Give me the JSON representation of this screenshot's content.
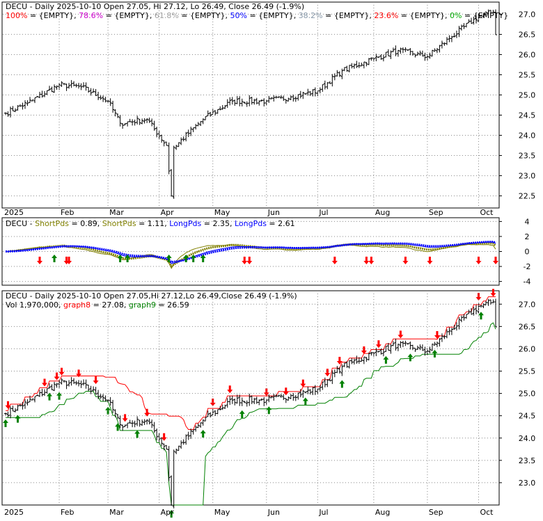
{
  "colors": {
    "background": "#ffffff",
    "panel_border": "#000000",
    "grid": "#888888",
    "price_bar": "#000000",
    "fib_100": "#ff0000",
    "fib_786": "#cc00cc",
    "fib_618": "#a0a0a0",
    "fib_50": "#0000ff",
    "fib_382": "#8899aa",
    "fib_236": "#ff0000",
    "fib_0": "#00aa00",
    "short_pds": "#808000",
    "long_pds": "#0000ff",
    "graph8": "#ff0000",
    "graph9": "#008000",
    "buy_arrow": "#008000",
    "sell_arrow": "#ff0000"
  },
  "chart_data": [
    {
      "type": "candlestick",
      "panel": "price",
      "title": "DECU - Daily 2025-10-10 Open 27.05, Hi 27.12, Lo 26.49, Close 26.49 (-1.9%)",
      "legend": [
        {
          "label": "100%",
          "value": "{EMPTY}",
          "color": "#ff0000"
        },
        {
          "label": "78.6%",
          "value": "{EMPTY}",
          "color": "#cc00cc"
        },
        {
          "label": "61.8%",
          "value": "{EMPTY}",
          "color": "#a0a0a0"
        },
        {
          "label": "50%",
          "value": "{EMPTY}",
          "color": "#0000ff"
        },
        {
          "label": "38.2%",
          "value": "{EMPTY}",
          "color": "#8899aa"
        },
        {
          "label": "23.6%",
          "value": "{EMPTY}",
          "color": "#ff0000"
        },
        {
          "label": "0%",
          "value": "{EMPTY}",
          "color": "#00aa00"
        }
      ],
      "x_tick_labels": [
        "2025",
        "Feb",
        "Mar",
        "Apr",
        "May",
        "Jun",
        "Jul",
        "Aug",
        "Sep",
        "Oct"
      ],
      "y_ticks": [
        22.5,
        23.0,
        23.5,
        24.0,
        24.5,
        25.0,
        25.5,
        26.0,
        26.5,
        27.0
      ],
      "y_tick_labels": [
        "22.5",
        "23.0",
        "23.5",
        "24.0",
        "24.5",
        "25.0",
        "25.5",
        "26.0",
        "26.5",
        "27.0"
      ],
      "ylim": [
        22.2,
        27.3
      ],
      "grid": true,
      "series_close_anchors": {
        "dates": [
          "2025-01-02",
          "2025-01-15",
          "2025-02-03",
          "2025-02-14",
          "2025-03-03",
          "2025-03-10",
          "2025-03-25",
          "2025-04-04",
          "2025-04-08",
          "2025-04-09",
          "2025-04-25",
          "2025-05-13",
          "2025-06-02",
          "2025-06-16",
          "2025-07-01",
          "2025-07-15",
          "2025-08-01",
          "2025-08-15",
          "2025-09-02",
          "2025-09-15",
          "2025-10-01",
          "2025-10-09",
          "2025-10-10"
        ],
        "close": [
          24.55,
          24.8,
          25.25,
          25.2,
          24.85,
          24.3,
          24.4,
          23.75,
          22.5,
          23.7,
          24.4,
          24.85,
          24.85,
          24.95,
          25.1,
          25.6,
          25.9,
          26.1,
          25.95,
          26.4,
          26.95,
          27.05,
          26.49
        ]
      },
      "last_bar": {
        "date": "2025-10-10",
        "open": 27.05,
        "high": 27.12,
        "low": 26.49,
        "close": 26.49
      }
    },
    {
      "type": "line",
      "panel": "indicator",
      "title": "DECU",
      "legend": [
        {
          "label": "ShortPds",
          "value": "0.89",
          "color": "#808000"
        },
        {
          "label": "ShortPds",
          "value": "1.11",
          "color": "#808000"
        },
        {
          "label": "LongPds",
          "value": "2.35",
          "color": "#0000ff"
        },
        {
          "label": "LongPds",
          "value": "2.61",
          "color": "#0000ff"
        }
      ],
      "y_ticks": [
        4,
        2,
        0,
        -2,
        -4
      ],
      "y_tick_labels": [
        "4",
        "2",
        "0",
        "-2",
        "-4"
      ],
      "ylim": [
        -4.5,
        4.5
      ],
      "sell_signal_dates": [
        "2025-01-22",
        "2025-02-06",
        "2025-02-07",
        "2025-05-20",
        "2025-05-22",
        "2025-07-10",
        "2025-07-29",
        "2025-07-31",
        "2025-08-20",
        "2025-09-03",
        "2025-10-01",
        "2025-10-10"
      ],
      "buy_signal_dates": [
        "2025-01-30",
        "2025-03-10",
        "2025-03-13",
        "2025-04-07",
        "2025-04-16",
        "2025-04-21",
        "2025-04-25"
      ]
    },
    {
      "type": "candlestick",
      "panel": "price_with_trailing_stops",
      "title": "DECU - Daily 2025-10-10 Open 27.05,Hi 27.12,Lo 26.49,Close 26.49 (-1.9%)",
      "legend": [
        {
          "label": "Vol",
          "value": "1,970,000",
          "color": "#000000"
        },
        {
          "label": "graph8",
          "value": "27.08",
          "color": "#ff0000"
        },
        {
          "label": "graph9",
          "value": "26.59",
          "color": "#008000"
        }
      ],
      "x_tick_labels": [
        "2025",
        "Feb",
        "Mar",
        "Apr",
        "May",
        "Jun",
        "Jul",
        "Aug",
        "Sep",
        "Oct"
      ],
      "y_ticks": [
        23.0,
        23.5,
        24.0,
        24.5,
        25.0,
        25.5,
        26.0,
        26.5,
        27.0
      ],
      "y_tick_labels": [
        "23.0",
        "23.5",
        "24.0",
        "24.5",
        "25.0",
        "25.5",
        "26.0",
        "26.5",
        "27.0"
      ],
      "ylim": [
        22.5,
        27.3
      ],
      "grid": true,
      "sell_signal_dates": [
        "2025-01-03",
        "2025-01-24",
        "2025-01-31",
        "2025-02-04",
        "2025-02-13",
        "2025-02-24",
        "2025-03-12",
        "2025-03-25",
        "2025-04-03",
        "2025-05-01",
        "2025-05-12",
        "2025-06-02",
        "2025-06-12",
        "2025-06-23",
        "2025-07-07",
        "2025-07-14",
        "2025-07-28",
        "2025-08-05",
        "2025-08-18",
        "2025-09-08",
        "2025-10-01",
        "2025-10-09"
      ],
      "buy_signal_dates": [
        "2025-01-02",
        "2025-01-09",
        "2025-01-28",
        "2025-02-03",
        "2025-03-03",
        "2025-03-07",
        "2025-03-19",
        "2025-04-08",
        "2025-04-25",
        "2025-05-19",
        "2025-06-03",
        "2025-06-24",
        "2025-07-15",
        "2025-08-08",
        "2025-08-22",
        "2025-09-05",
        "2025-10-02"
      ]
    }
  ]
}
